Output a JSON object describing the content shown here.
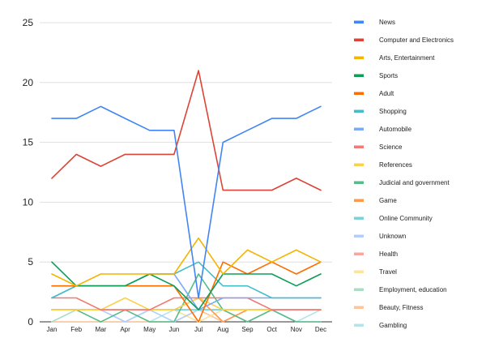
{
  "chart_data": {
    "type": "line",
    "title": "",
    "xlabel": "",
    "ylabel": "",
    "ylim": [
      0,
      25
    ],
    "y_ticks": [
      0,
      5,
      10,
      15,
      20,
      25
    ],
    "grid": "horizontal",
    "legend_position": "right",
    "categories": [
      "Jan",
      "Feb",
      "Mar",
      "Apr",
      "May",
      "Jun",
      "Jul",
      "Aug",
      "Sep",
      "Oct",
      "Nov",
      "Dec"
    ],
    "series": [
      {
        "name": "News",
        "color": "#4285f4",
        "values": [
          17,
          17,
          18,
          17,
          16,
          16,
          2,
          15,
          16,
          17,
          17,
          18
        ]
      },
      {
        "name": "Computer and Electronics",
        "color": "#db4437",
        "values": [
          12,
          14,
          13,
          14,
          14,
          14,
          21,
          11,
          11,
          11,
          12,
          11
        ]
      },
      {
        "name": "Arts, Entertainment",
        "color": "#f4b400",
        "values": [
          4,
          3,
          4,
          4,
          4,
          4,
          7,
          4,
          6,
          5,
          6,
          5
        ]
      },
      {
        "name": "Sports",
        "color": "#0f9d58",
        "values": [
          5,
          3,
          3,
          3,
          4,
          3,
          1,
          4,
          4,
          4,
          3,
          4
        ]
      },
      {
        "name": "Adult",
        "color": "#ff6d01",
        "values": [
          3,
          3,
          3,
          3,
          3,
          3,
          0,
          5,
          4,
          5,
          4,
          5
        ]
      },
      {
        "name": "Shopping",
        "color": "#46bdc6",
        "values": [
          2,
          3,
          3,
          3,
          4,
          4,
          5,
          3,
          3,
          2,
          2,
          2
        ]
      },
      {
        "name": "Automobile",
        "color": "#7baaf7",
        "values": [
          2,
          3,
          3,
          3,
          4,
          4,
          1,
          2,
          2,
          2,
          2,
          2
        ]
      },
      {
        "name": "Science",
        "color": "#f07b72",
        "values": [
          2,
          2,
          1,
          1,
          1,
          2,
          2,
          2,
          2,
          1,
          1,
          1
        ]
      },
      {
        "name": "References",
        "color": "#fcd04f",
        "values": [
          1,
          1,
          1,
          2,
          1,
          1,
          2,
          1,
          1,
          1,
          1,
          1
        ]
      },
      {
        "name": "Judicial and government",
        "color": "#57bb8a",
        "values": [
          1,
          1,
          0,
          1,
          0,
          0,
          4,
          1,
          0,
          1,
          0,
          0
        ]
      },
      {
        "name": "Game",
        "color": "#ff994d",
        "values": [
          1,
          1,
          1,
          1,
          1,
          1,
          2,
          0,
          1,
          1,
          1,
          1
        ]
      },
      {
        "name": "Online Community",
        "color": "#7ed1d7",
        "values": [
          1,
          1,
          1,
          1,
          1,
          1,
          1,
          1,
          1,
          1,
          1,
          1
        ]
      },
      {
        "name": "Unknown",
        "color": "#b3cefb",
        "values": [
          1,
          1,
          1,
          0,
          1,
          0,
          1,
          1,
          1,
          1,
          1,
          1
        ]
      },
      {
        "name": "Health",
        "color": "#f7a7a0",
        "values": [
          1,
          1,
          1,
          1,
          1,
          1,
          1,
          1,
          1,
          1,
          1,
          1
        ]
      },
      {
        "name": "Travel",
        "color": "#fde49b",
        "values": [
          1,
          1,
          1,
          1,
          1,
          1,
          0,
          1,
          0,
          1,
          1,
          1
        ]
      },
      {
        "name": "Employment, education",
        "color": "#abdcc4",
        "values": [
          0,
          1,
          1,
          0,
          1,
          1,
          1,
          1,
          0,
          1,
          0,
          0
        ]
      },
      {
        "name": "Beauty, Fitness",
        "color": "#ffc599",
        "values": [
          0,
          0,
          0,
          0,
          0,
          0,
          1,
          0,
          1,
          1,
          1,
          1
        ]
      },
      {
        "name": "Gambling",
        "color": "#b7e4e7",
        "values": [
          0,
          0,
          0,
          0,
          0,
          1,
          0,
          1,
          1,
          1,
          0,
          1
        ]
      }
    ]
  }
}
